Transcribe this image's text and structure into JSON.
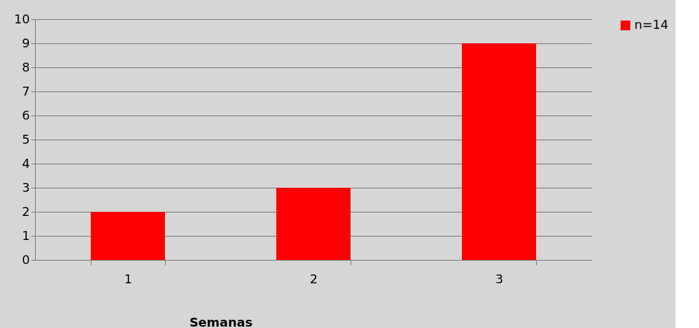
{
  "chart_data": {
    "type": "bar",
    "xlabel": "Semanas",
    "categories": [
      "1",
      "2",
      "3"
    ],
    "series": [
      {
        "name": "n=14",
        "color": "#ff0000",
        "values": [
          2,
          3,
          9
        ]
      }
    ],
    "ylim": [
      0,
      10
    ],
    "yticks": [
      0,
      1,
      2,
      3,
      4,
      5,
      6,
      7,
      8,
      9,
      10
    ],
    "grid": "y",
    "legend": "right"
  }
}
